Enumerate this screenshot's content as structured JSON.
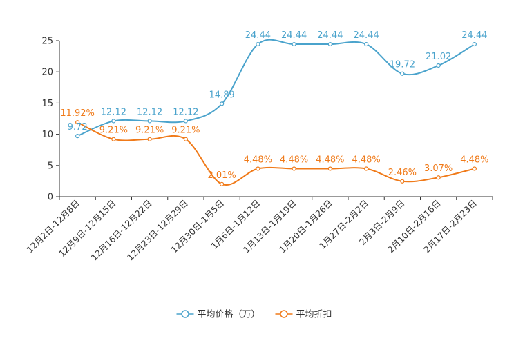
{
  "chart_data": {
    "type": "line",
    "title": "",
    "xlabel": "",
    "ylabel": "",
    "ylim": [
      0,
      25
    ],
    "yticks": [
      0,
      5,
      10,
      15,
      20,
      25
    ],
    "grid": false,
    "legend_position": "bottom-center",
    "categories": [
      "12月2日-12月8日",
      "12月9日-12月15日",
      "12月16日-12月22日",
      "12月23日-12月29日",
      "12月30日-1月5日",
      "1月6日-1月12日",
      "1月13日-1月19日",
      "1月20日-1月26日",
      "1月27日-2月2日",
      "2月3日-2月9日",
      "2月10日-2月16日",
      "2月17日-2月23日"
    ],
    "series": [
      {
        "name": "平均价格（万）",
        "color": "#4aa3cc",
        "values": [
          9.72,
          12.12,
          12.12,
          12.12,
          14.89,
          24.44,
          24.44,
          24.44,
          24.44,
          19.72,
          21.02,
          24.44
        ],
        "labels": [
          "9.72",
          "12.12",
          "12.12",
          "12.12",
          "14.89",
          "24.44",
          "24.44",
          "24.44",
          "24.44",
          "19.72",
          "21.02",
          "24.44"
        ]
      },
      {
        "name": "平均折扣",
        "color": "#f07a19",
        "values": [
          11.92,
          9.21,
          9.21,
          9.21,
          2.01,
          4.48,
          4.48,
          4.48,
          4.48,
          2.46,
          3.07,
          4.48
        ],
        "labels": [
          "11.92%",
          "9.21%",
          "9.21%",
          "9.21%",
          "2.01%",
          "4.48%",
          "4.48%",
          "4.48%",
          "4.48%",
          "2.46%",
          "3.07%",
          "4.48%"
        ]
      }
    ]
  }
}
